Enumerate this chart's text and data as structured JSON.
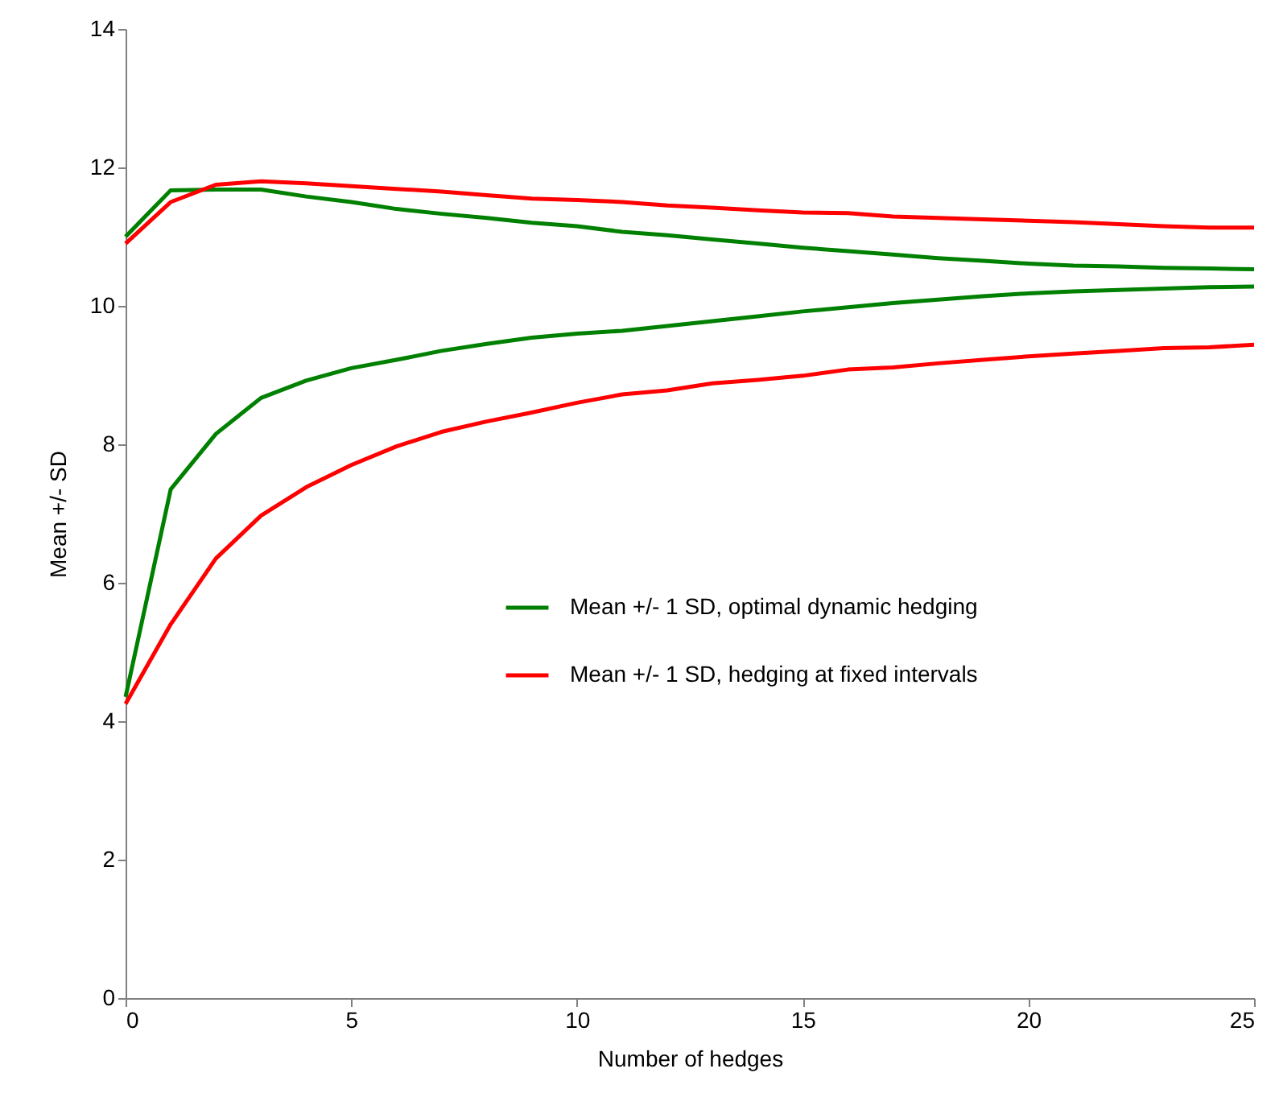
{
  "chart_data": {
    "type": "line",
    "xlabel": "Number of hedges",
    "ylabel": "Mean +/- SD",
    "x": [
      0,
      1,
      2,
      3,
      4,
      5,
      6,
      7,
      8,
      9,
      10,
      11,
      12,
      13,
      14,
      15,
      16,
      17,
      18,
      19,
      20,
      21,
      22,
      23,
      24,
      25
    ],
    "series": [
      {
        "name": "Mean +/- 1 SD, optimal dynamic hedging",
        "color": "#008000",
        "values": [
          11.0,
          11.67,
          11.68,
          11.68,
          11.58,
          11.5,
          11.4,
          11.33,
          11.27,
          11.2,
          11.15,
          11.07,
          11.02,
          10.96,
          10.9,
          10.84,
          10.79,
          10.74,
          10.69,
          10.65,
          10.61,
          10.58,
          10.57,
          10.55,
          10.54,
          10.53
        ]
      },
      {
        "color": "#008000",
        "values": [
          4.35,
          7.35,
          8.15,
          8.67,
          8.92,
          9.1,
          9.22,
          9.35,
          9.45,
          9.54,
          9.6,
          9.64,
          9.71,
          9.78,
          9.85,
          9.92,
          9.98,
          10.04,
          10.09,
          10.14,
          10.18,
          10.21,
          10.23,
          10.25,
          10.27,
          10.28
        ]
      },
      {
        "name": "Mean +/- 1 SD, hedging at fixed intervals",
        "color": "#ff0000",
        "values": [
          10.9,
          11.5,
          11.75,
          11.8,
          11.77,
          11.73,
          11.69,
          11.65,
          11.6,
          11.55,
          11.53,
          11.5,
          11.45,
          11.42,
          11.38,
          11.35,
          11.34,
          11.29,
          11.27,
          11.25,
          11.23,
          11.21,
          11.18,
          11.15,
          11.13,
          11.13
        ]
      },
      {
        "color": "#ff0000",
        "values": [
          4.25,
          5.4,
          6.35,
          6.97,
          7.38,
          7.7,
          7.97,
          8.18,
          8.33,
          8.46,
          8.6,
          8.72,
          8.78,
          8.88,
          8.93,
          8.99,
          9.08,
          9.11,
          9.17,
          9.22,
          9.27,
          9.31,
          9.35,
          9.39,
          9.4,
          9.44
        ]
      }
    ],
    "xlim": [
      0,
      25
    ],
    "xticks": [
      0,
      5,
      10,
      15,
      20,
      25
    ],
    "ylim": [
      0,
      14
    ],
    "yticks": [
      0,
      2,
      4,
      6,
      8,
      10,
      12,
      14
    ],
    "grid": false,
    "legend": "right",
    "marker": "none",
    "line_style": "solid"
  }
}
